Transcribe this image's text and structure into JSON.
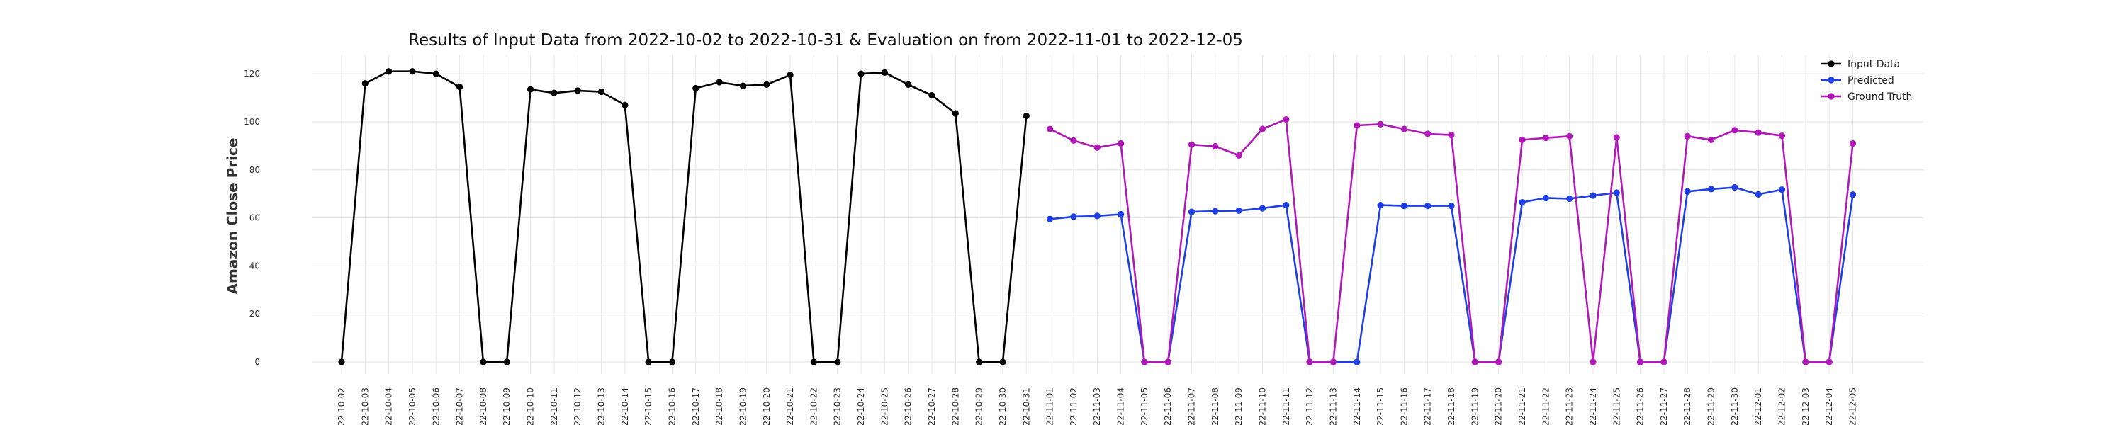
{
  "chart_data": {
    "type": "line",
    "title": "Results of Input Data from 2022-10-02 to 2022-10-31 & Evaluation on from 2022-11-01 to 2022-12-05",
    "xlabel": "",
    "ylabel": "Amazon Close Price",
    "ylim": [
      -5,
      128
    ],
    "y_ticks": [
      0,
      20,
      40,
      60,
      80,
      100,
      120
    ],
    "grid": true,
    "legend_position": "top-right",
    "x_tick_labels": [
      "22-10-02",
      "22-10-03",
      "22-10-04",
      "22-10-05",
      "22-10-06",
      "22-10-07",
      "22-10-08",
      "22-10-09",
      "22-10-10",
      "22-10-11",
      "22-10-12",
      "22-10-13",
      "22-10-14",
      "22-10-15",
      "22-10-16",
      "22-10-17",
      "22-10-18",
      "22-10-19",
      "22-10-20",
      "22-10-21",
      "22-10-22",
      "22-10-23",
      "22-10-24",
      "22-10-25",
      "22-10-26",
      "22-10-27",
      "22-10-28",
      "22-10-29",
      "22-10-30",
      "22-10-31",
      "22-11-01",
      "22-11-02",
      "22-11-03",
      "22-11-04",
      "22-11-05",
      "22-11-06",
      "22-11-07",
      "22-11-08",
      "22-11-09",
      "22-11-10",
      "22-11-11",
      "22-11-12",
      "22-11-13",
      "22-11-14",
      "22-11-15",
      "22-11-16",
      "22-11-17",
      "22-11-18",
      "22-11-19",
      "22-11-20",
      "22-11-21",
      "22-11-22",
      "22-11-23",
      "22-11-24",
      "22-11-25",
      "22-11-26",
      "22-11-27",
      "22-11-28",
      "22-11-29",
      "22-11-30",
      "22-12-01",
      "22-12-02",
      "22-12-03",
      "22-12-04",
      "22-12-05"
    ],
    "series": [
      {
        "name": "Input Data",
        "color": "#000000",
        "x": [
          "22-10-02",
          "22-10-03",
          "22-10-04",
          "22-10-05",
          "22-10-06",
          "22-10-07",
          "22-10-08",
          "22-10-09",
          "22-10-10",
          "22-10-11",
          "22-10-12",
          "22-10-13",
          "22-10-14",
          "22-10-15",
          "22-10-16",
          "22-10-17",
          "22-10-18",
          "22-10-19",
          "22-10-20",
          "22-10-21",
          "22-10-22",
          "22-10-23",
          "22-10-24",
          "22-10-25",
          "22-10-26",
          "22-10-27",
          "22-10-28",
          "22-10-29",
          "22-10-30",
          "22-10-31"
        ],
        "values": [
          0,
          116,
          121,
          121,
          120,
          114.5,
          0,
          0,
          113.5,
          112,
          113,
          112.5,
          107,
          0,
          0,
          114,
          116.5,
          115,
          115.5,
          119.5,
          0,
          0,
          120,
          120.5,
          115.5,
          111,
          103.5,
          0,
          0,
          102.5
        ]
      },
      {
        "name": "Predicted",
        "color": "#1f3fe6",
        "x": [
          "22-11-01",
          "22-11-02",
          "22-11-03",
          "22-11-04",
          "22-11-05",
          "22-11-06",
          "22-11-07",
          "22-11-08",
          "22-11-09",
          "22-11-10",
          "22-11-11",
          "22-11-12",
          "22-11-13",
          "22-11-14",
          "22-11-15",
          "22-11-16",
          "22-11-17",
          "22-11-18",
          "22-11-19",
          "22-11-20",
          "22-11-21",
          "22-11-22",
          "22-11-23",
          "22-11-24",
          "22-11-25",
          "22-11-26",
          "22-11-27",
          "22-11-28",
          "22-11-29",
          "22-11-30",
          "22-12-01",
          "22-12-02",
          "22-12-03",
          "22-12-04",
          "22-12-05"
        ],
        "values": [
          59.5,
          60.5,
          60.8,
          61.5,
          0,
          0,
          62.5,
          62.8,
          63,
          64,
          65.3,
          0,
          0,
          0,
          65.3,
          65,
          65,
          65,
          0,
          0,
          66.5,
          68.3,
          68,
          69.3,
          70.5,
          0,
          0,
          71,
          72,
          72.7,
          69.8,
          71.8,
          0,
          0,
          69.7
        ]
      },
      {
        "name": "Ground Truth",
        "color": "#b019b8",
        "x": [
          "22-11-01",
          "22-11-02",
          "22-11-03",
          "22-11-04",
          "22-11-05",
          "22-11-06",
          "22-11-07",
          "22-11-08",
          "22-11-09",
          "22-11-10",
          "22-11-11",
          "22-11-12",
          "22-11-13",
          "22-11-14",
          "22-11-15",
          "22-11-16",
          "22-11-17",
          "22-11-18",
          "22-11-19",
          "22-11-20",
          "22-11-21",
          "22-11-22",
          "22-11-23",
          "22-11-24",
          "22-11-25",
          "22-11-26",
          "22-11-27",
          "22-11-28",
          "22-11-29",
          "22-11-30",
          "22-12-01",
          "22-12-02",
          "22-12-03",
          "22-12-04",
          "22-12-05"
        ],
        "values": [
          97,
          92.2,
          89.3,
          91,
          0,
          0,
          90.5,
          89.8,
          86,
          97,
          101,
          0,
          0,
          98.5,
          99,
          97,
          95,
          94.5,
          0,
          0,
          92.5,
          93.3,
          94,
          0,
          93.5,
          0,
          0,
          94,
          92.5,
          96.5,
          95.5,
          94.2,
          0,
          0,
          91
        ]
      }
    ]
  }
}
